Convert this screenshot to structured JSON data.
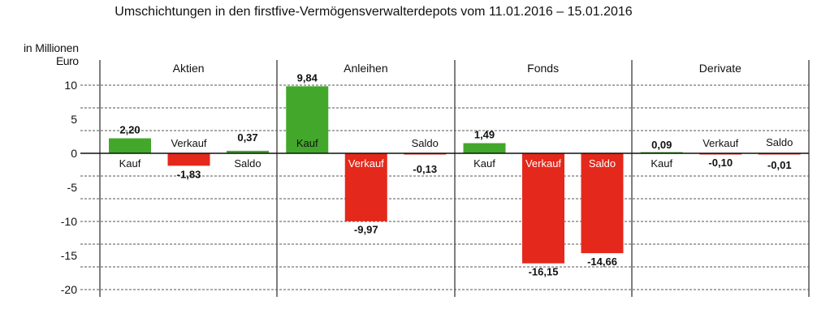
{
  "chart_data": {
    "type": "bar",
    "title": "Umschichtungen in den firstfive-Vermögensverwalterdepots vom 11.01.2016 – 15.01.2016",
    "ylabel": "in Millionen Euro",
    "ylabel_lines": [
      "in Millionen",
      "Euro"
    ],
    "ylim": [
      -20,
      10
    ],
    "yticks": [
      10,
      5,
      0,
      -5,
      -10,
      -15,
      -20
    ],
    "ytick_labels": [
      "10",
      "5",
      "0",
      "-5",
      "-10",
      "-15",
      "-20"
    ],
    "grid": true,
    "colors": {
      "positive": "#43a72c",
      "negative": "#e4281b"
    },
    "groups": [
      {
        "name": "Aktien",
        "bars": [
          {
            "label": "Kauf",
            "value": 2.2,
            "value_label": "2,20"
          },
          {
            "label": "Verkauf",
            "value": -1.83,
            "value_label": "-1,83"
          },
          {
            "label": "Saldo",
            "value": 0.37,
            "value_label": "0,37"
          }
        ]
      },
      {
        "name": "Anleihen",
        "bars": [
          {
            "label": "Kauf",
            "value": 9.84,
            "value_label": "9,84"
          },
          {
            "label": "Verkauf",
            "value": -9.97,
            "value_label": "-9,97"
          },
          {
            "label": "Saldo",
            "value": -0.13,
            "value_label": "-0,13"
          }
        ]
      },
      {
        "name": "Fonds",
        "bars": [
          {
            "label": "Kauf",
            "value": 1.49,
            "value_label": "1,49"
          },
          {
            "label": "Verkauf",
            "value": -16.15,
            "value_label": "-16,15"
          },
          {
            "label": "Saldo",
            "value": -14.66,
            "value_label": "-14,66"
          }
        ]
      },
      {
        "name": "Derivate",
        "bars": [
          {
            "label": "Kauf",
            "value": 0.09,
            "value_label": "0,09"
          },
          {
            "label": "Verkauf",
            "value": -0.1,
            "value_label": "-0,10"
          },
          {
            "label": "Saldo",
            "value": -0.01,
            "value_label": "-0,01"
          }
        ]
      }
    ]
  }
}
